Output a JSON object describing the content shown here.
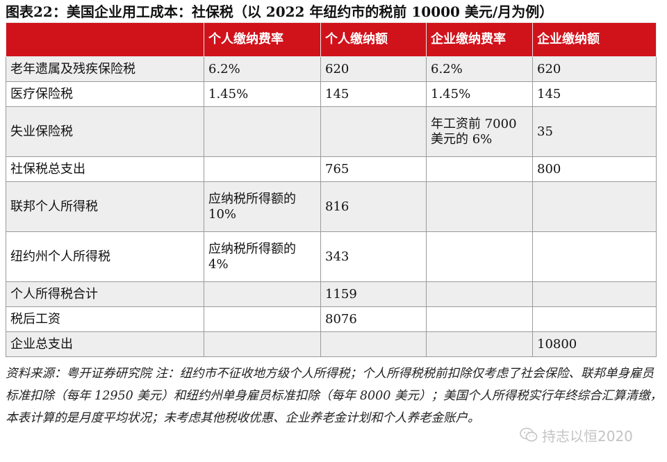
{
  "title": "图表22：美国企业用工成本：社保税（以 2022 年纽约市的税前 10000 美元/月为例）",
  "table": {
    "headers": [
      "",
      "个人缴纳费率",
      "个人缴纳额",
      "企业缴纳费率",
      "企业缴纳额"
    ],
    "rows": [
      [
        "老年遗属及残疾保险税",
        "6.2%",
        "620",
        "6.2%",
        "620"
      ],
      [
        "医疗保险税",
        "1.45%",
        "145",
        "1.45%",
        "145"
      ],
      [
        "失业保险税",
        "",
        "",
        "年工资前 7000 美元的 6%",
        "35"
      ],
      [
        "社保税总支出",
        "",
        "765",
        "",
        "800"
      ],
      [
        "联邦个人所得税",
        "应纳税所得额的 10%",
        "816",
        "",
        ""
      ],
      [
        "纽约州个人所得税",
        "应纳税所得额的 4%",
        "343",
        "",
        ""
      ],
      [
        "个人所得税合计",
        "",
        "1159",
        "",
        ""
      ],
      [
        "税后工资",
        "",
        "8076",
        "",
        ""
      ],
      [
        "企业总支出",
        "",
        "",
        "",
        "10800"
      ]
    ]
  },
  "note": "资料来源：粤开证券研究院 注：纽约市不征收地方级个人所得税；个人所得税税前扣除仅考虑了社会保险、联邦单身雇员标准扣除（每年 12950 美元）和纽约州单身雇员标准扣除（每年 8000 美元）；美国个人所得税实行年终综合汇算清缴，本表计算的是月度平均状况；未考虑其他税收优惠、企业养老金计划和个人养老金账户。",
  "watermark": {
    "icon": "wechat-icon",
    "text": "持志以恒2020"
  }
}
